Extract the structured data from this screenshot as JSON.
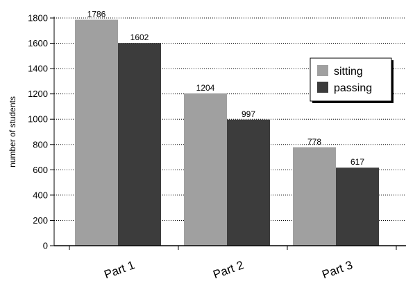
{
  "chart_data": {
    "type": "bar",
    "categories": [
      "Part 1",
      "Part 2",
      "Part 3"
    ],
    "series": [
      {
        "name": "sitting",
        "values": [
          1786,
          1204,
          778
        ],
        "color": "#a0a0a0"
      },
      {
        "name": "passing",
        "values": [
          1602,
          997,
          617
        ],
        "color": "#3c3c3c"
      }
    ],
    "title": "",
    "xlabel": "",
    "ylabel": "number of students",
    "ylim": [
      0,
      1800
    ],
    "yticks": [
      0,
      200,
      400,
      600,
      800,
      1000,
      1200,
      1400,
      1600,
      1800
    ],
    "grid": "horizontal dotted",
    "legend_position": "top-right",
    "data_labels": true
  }
}
